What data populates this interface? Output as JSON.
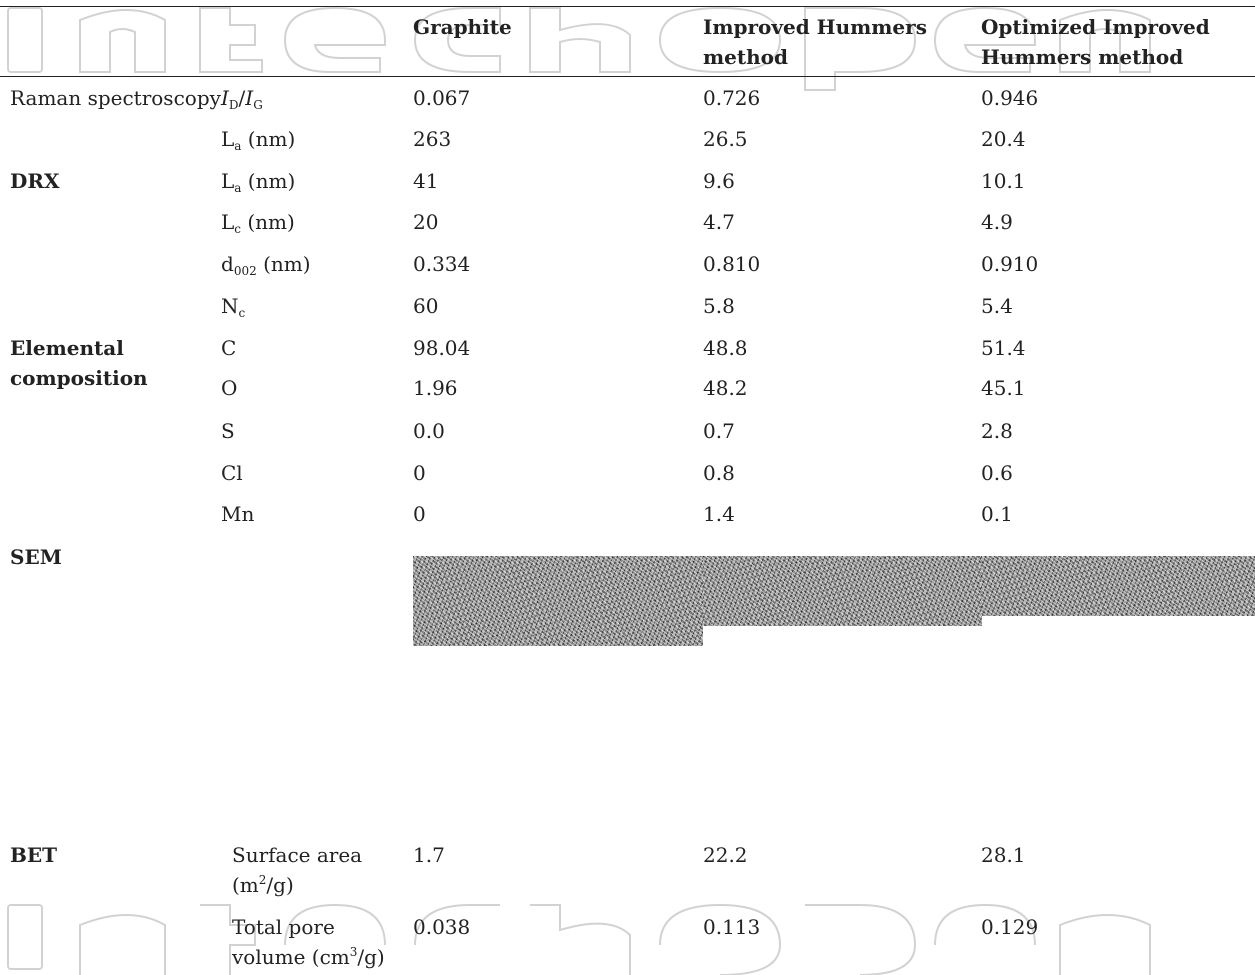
{
  "header": {
    "col_graphite": "Graphite",
    "col_ihm": "Improved Hummers method",
    "col_oihm": "Optimized Improved Hummers method"
  },
  "rows": {
    "raman_group": "Raman spectroscopy",
    "id_ig": {
      "label_I": "I",
      "label_D": "D",
      "label_sep": "/",
      "label_I2": "I",
      "label_G": "G",
      "graphite": "0.067",
      "ihm": "0.726",
      "oihm": "0.946"
    },
    "la_raman": {
      "label": "L",
      "sub": "a",
      "unit": " (nm)",
      "graphite": "263",
      "ihm": "26.5",
      "oihm": "20.4"
    },
    "drx_group": "DRX",
    "la_drx": {
      "label": "L",
      "sub": "a",
      "unit": " (nm)",
      "graphite": "41",
      "ihm": "9.6",
      "oihm": "10.1"
    },
    "lc": {
      "label": "L",
      "sub": "c",
      "unit": " (nm)",
      "graphite": "20",
      "ihm": "4.7",
      "oihm": "4.9"
    },
    "d002": {
      "label": "d",
      "sub": "002",
      "unit": " (nm)",
      "graphite": "0.334",
      "ihm": "0.810",
      "oihm": "0.910"
    },
    "nc": {
      "label": "N",
      "sub": "c",
      "graphite": "60",
      "ihm": "5.8",
      "oihm": "5.4"
    },
    "elemental_group_1": "Elemental",
    "elemental_group_2": "composition",
    "c": {
      "label": "C",
      "graphite": "98.04",
      "ihm": "48.8",
      "oihm": "51.4"
    },
    "o": {
      "label": "O",
      "graphite": "1.96",
      "ihm": "48.2",
      "oihm": "45.1"
    },
    "s": {
      "label": "S",
      "graphite": "0.0",
      "ihm": "0.7",
      "oihm": "2.8"
    },
    "cl": {
      "label": "Cl",
      "graphite": "0",
      "ihm": "0.8",
      "oihm": "0.6"
    },
    "mn": {
      "label": "Mn",
      "graphite": "0",
      "ihm": "1.4",
      "oihm": "0.1"
    },
    "sem_group": "SEM",
    "bet_group": "BET",
    "surface_area": {
      "label1": "Surface area",
      "label2_pre": "(m",
      "label2_sup": "2",
      "label2_post": "/g)",
      "graphite": "1.7",
      "ihm": "22.2",
      "oihm": "28.1"
    },
    "pore_volume": {
      "label1": "Total pore",
      "label2_pre": "volume (cm",
      "label2_sup": "3",
      "label2_post": "/g)",
      "graphite": "0.038",
      "ihm": "0.113",
      "oihm": "0.129"
    }
  },
  "watermark": "IntechOpen"
}
